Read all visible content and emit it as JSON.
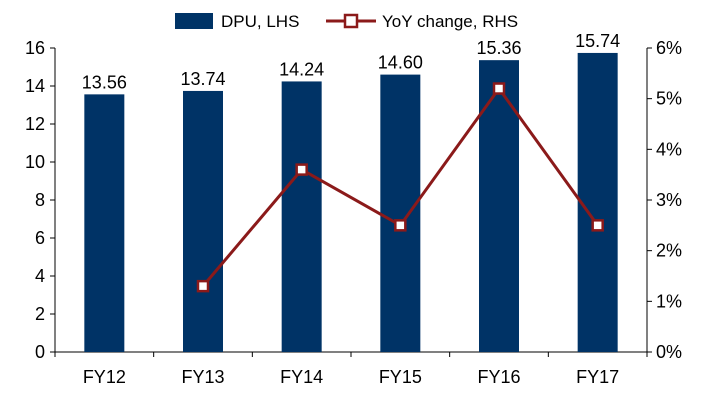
{
  "chart_data": {
    "type": "bar",
    "categories": [
      "FY12",
      "FY13",
      "FY14",
      "FY15",
      "FY16",
      "FY17"
    ],
    "series": [
      {
        "name": "DPU, LHS",
        "type": "bar",
        "axis": "left",
        "values": [
          13.56,
          13.74,
          14.24,
          14.6,
          15.36,
          15.74
        ],
        "data_labels": [
          "13.56",
          "13.74",
          "14.24",
          "14.60",
          "15.36",
          "15.74"
        ]
      },
      {
        "name": "YoY change, RHS",
        "type": "line",
        "axis": "right",
        "values": [
          null,
          0.013,
          0.036,
          0.025,
          0.052,
          0.025
        ]
      }
    ],
    "y_left": {
      "ylim": [
        0,
        16
      ],
      "ticks": [
        "0",
        "2",
        "4",
        "6",
        "8",
        "10",
        "12",
        "14",
        "16"
      ]
    },
    "y_right": {
      "ylim": [
        0,
        0.06
      ],
      "ticks": [
        "0%",
        "1%",
        "2%",
        "3%",
        "4%",
        "5%",
        "6%"
      ]
    },
    "legend": {
      "placement": "top-center"
    },
    "grid": false,
    "colors": {
      "bar": "#003366",
      "line": "#8b1a1a",
      "marker_fill": "#ffffff"
    }
  }
}
